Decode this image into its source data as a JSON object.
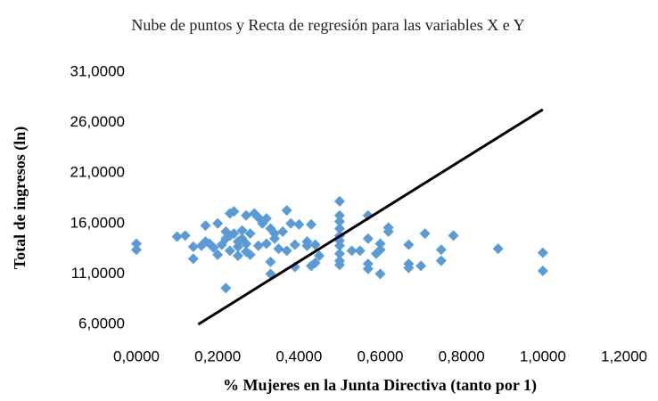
{
  "chart_data": {
    "type": "scatter",
    "title": "Nube de puntos y Recta de regresión para las variables X e Y",
    "x_label": "% Mujeres en la Junta Directiva (tanto por 1)",
    "y_label": "Total de ingresos (ln)",
    "xlim": [
      0,
      1.2
    ],
    "ylim": [
      6,
      31
    ],
    "xticks": [
      {
        "value": 0,
        "label": "0,0000"
      },
      {
        "value": 0.2,
        "label": "0,2000"
      },
      {
        "value": 0.4,
        "label": "0,4000"
      },
      {
        "value": 0.6,
        "label": "0,6000"
      },
      {
        "value": 0.8,
        "label": "0,8000"
      },
      {
        "value": 1.0,
        "label": "1,0000"
      },
      {
        "value": 1.2,
        "label": "1,2000"
      }
    ],
    "yticks": [
      {
        "value": 6,
        "label": "6,0000"
      },
      {
        "value": 11,
        "label": "11,0000"
      },
      {
        "value": 16,
        "label": "16,0000"
      },
      {
        "value": 21,
        "label": "21,0000"
      },
      {
        "value": 26,
        "label": "26,0000"
      },
      {
        "value": 31,
        "label": "31,0000"
      }
    ],
    "grid": false,
    "series": [
      {
        "color": "#5b9bd5",
        "x": [
          0,
          0,
          0.1,
          0.12,
          0.14,
          0.14,
          0.16,
          0.17,
          0.17,
          0.18,
          0.19,
          0.2,
          0.2,
          0.21,
          0.22,
          0.22,
          0.22,
          0.23,
          0.23,
          0.23,
          0.24,
          0.24,
          0.25,
          0.25,
          0.25,
          0.26,
          0.26,
          0.27,
          0.27,
          0.27,
          0.28,
          0.28,
          0.29,
          0.3,
          0.3,
          0.31,
          0.32,
          0.32,
          0.33,
          0.33,
          0.33,
          0.34,
          0.34,
          0.35,
          0.36,
          0.37,
          0.37,
          0.38,
          0.39,
          0.39,
          0.4,
          0.42,
          0.42,
          0.43,
          0.43,
          0.44,
          0.44,
          0.45,
          0.5,
          0.5,
          0.5,
          0.5,
          0.5,
          0.5,
          0.5,
          0.5,
          0.5,
          0.5,
          0.53,
          0.55,
          0.57,
          0.57,
          0.57,
          0.57,
          0.59,
          0.6,
          0.6,
          0.6,
          0.62,
          0.62,
          0.67,
          0.67,
          0.67,
          0.7,
          0.71,
          0.75,
          0.75,
          0.78,
          0.89,
          1.0,
          1.0
        ],
        "values": [
          14.0,
          13.4,
          14.7,
          14.8,
          12.5,
          13.7,
          13.8,
          14.2,
          15.8,
          14.0,
          13.6,
          12.9,
          16.0,
          13.9,
          9.6,
          14.5,
          15.2,
          17.0,
          14.8,
          13.3,
          17.2,
          15.0,
          14.2,
          13.7,
          12.8,
          15.3,
          14.5,
          13.2,
          16.8,
          14.0,
          15.0,
          12.9,
          17.0,
          16.6,
          13.8,
          16.0,
          16.5,
          14.0,
          15.5,
          12.2,
          11.0,
          14.5,
          15.0,
          13.5,
          15.2,
          17.3,
          13.3,
          16.0,
          11.7,
          13.9,
          15.9,
          14.2,
          13.8,
          15.9,
          11.8,
          12.1,
          13.9,
          12.8,
          18.2,
          16.8,
          16.2,
          15.5,
          14.8,
          14.3,
          13.8,
          13.0,
          12.3,
          11.9,
          13.3,
          13.3,
          16.8,
          14.5,
          12.0,
          11.5,
          13.0,
          13.4,
          14.0,
          11.0,
          15.2,
          15.6,
          13.9,
          12.0,
          11.6,
          11.8,
          15.0,
          13.4,
          12.3,
          14.8,
          13.5,
          13.1,
          11.3
        ]
      }
    ],
    "regression_line": {
      "color": "#000000",
      "x": [
        0.152,
        1.0
      ],
      "values": [
        6,
        27.3
      ]
    }
  }
}
